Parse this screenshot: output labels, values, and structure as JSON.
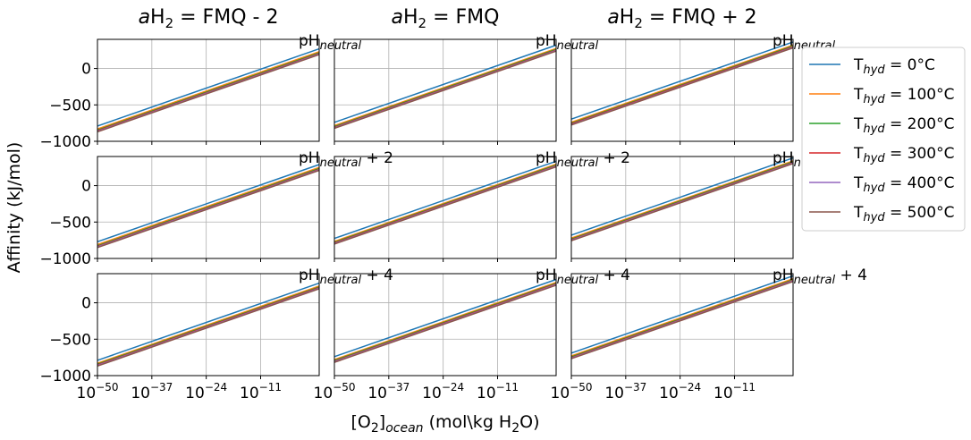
{
  "figure": {
    "ylabel": "Affinity (kJ/mol)",
    "xlabel": {
      "main": "[O",
      "sub1": "2",
      "mid": "]",
      "sub2": "ocean",
      "tail": " (mol\\kg H",
      "sub3": "2",
      "end": "O)"
    }
  },
  "columns": [
    {
      "pre": "a",
      "mid": "H",
      "sub": "2",
      "post": " = FMQ - 2"
    },
    {
      "pre": "a",
      "mid": "H",
      "sub": "2",
      "post": " = FMQ"
    },
    {
      "pre": "a",
      "mid": "H",
      "sub": "2",
      "post": " = FMQ + 2"
    }
  ],
  "row_labels": [
    {
      "pre": "pH",
      "sub": "neutral",
      "post": ""
    },
    {
      "pre": "pH",
      "sub": "neutral",
      "post": " + 2"
    },
    {
      "pre": "pH",
      "sub": "neutral",
      "post": " + 4"
    }
  ],
  "legend": [
    {
      "pre": "T",
      "sub": "hyd",
      "post": " = 0°C",
      "color": "#1f77b4"
    },
    {
      "pre": "T",
      "sub": "hyd",
      "post": " = 100°C",
      "color": "#ff7f0e"
    },
    {
      "pre": "T",
      "sub": "hyd",
      "post": " = 200°C",
      "color": "#2ca02c"
    },
    {
      "pre": "T",
      "sub": "hyd",
      "post": " = 300°C",
      "color": "#d62728"
    },
    {
      "pre": "T",
      "sub": "hyd",
      "post": " = 400°C",
      "color": "#9467bd"
    },
    {
      "pre": "T",
      "sub": "hyd",
      "post": " = 500°C",
      "color": "#8c564b"
    }
  ],
  "axes": {
    "x_ticks": [
      {
        "base": "10",
        "exp": "−50",
        "value": -50
      },
      {
        "base": "10",
        "exp": "−37",
        "value": -37
      },
      {
        "base": "10",
        "exp": "−24",
        "value": -24
      },
      {
        "base": "10",
        "exp": "−11",
        "value": -11
      }
    ],
    "y_ticks": [
      {
        "label": "−1000",
        "value": -1000
      },
      {
        "label": "−500",
        "value": -500
      },
      {
        "label": "0",
        "value": 0
      }
    ]
  },
  "chart_data": {
    "type": "line",
    "x_scale": "log",
    "xlim": [
      -50,
      3
    ],
    "ylim": [
      -1000,
      400
    ],
    "grid": true,
    "legend_position": "right",
    "panels": [
      {
        "row": 0,
        "col": 0,
        "series": [
          {
            "name": "T_hyd = 0°C",
            "x": [
              -50,
              3
            ],
            "y": [
              -790,
              270
            ]
          },
          {
            "name": "T_hyd = 100°C",
            "x": [
              -50,
              3
            ],
            "y": [
              -830,
              230
            ]
          },
          {
            "name": "T_hyd = 200°C",
            "x": [
              -50,
              3
            ],
            "y": [
              -845,
              215
            ]
          },
          {
            "name": "T_hyd = 300°C",
            "x": [
              -50,
              3
            ],
            "y": [
              -855,
              205
            ]
          },
          {
            "name": "T_hyd = 400°C",
            "x": [
              -50,
              3
            ],
            "y": [
              -862,
              198
            ]
          },
          {
            "name": "T_hyd = 500°C",
            "x": [
              -50,
              3
            ],
            "y": [
              -870,
              190
            ]
          }
        ]
      },
      {
        "row": 0,
        "col": 1,
        "series": [
          {
            "name": "T_hyd = 0°C",
            "x": [
              -50,
              3
            ],
            "y": [
              -740,
              320
            ]
          },
          {
            "name": "T_hyd = 100°C",
            "x": [
              -50,
              3
            ],
            "y": [
              -785,
              275
            ]
          },
          {
            "name": "T_hyd = 200°C",
            "x": [
              -50,
              3
            ],
            "y": [
              -798,
              262
            ]
          },
          {
            "name": "T_hyd = 300°C",
            "x": [
              -50,
              3
            ],
            "y": [
              -808,
              252
            ]
          },
          {
            "name": "T_hyd = 400°C",
            "x": [
              -50,
              3
            ],
            "y": [
              -815,
              245
            ]
          },
          {
            "name": "T_hyd = 500°C",
            "x": [
              -50,
              3
            ],
            "y": [
              -822,
              238
            ]
          }
        ]
      },
      {
        "row": 0,
        "col": 2,
        "series": [
          {
            "name": "T_hyd = 0°C",
            "x": [
              -50,
              3
            ],
            "y": [
              -695,
              365
            ]
          },
          {
            "name": "T_hyd = 100°C",
            "x": [
              -50,
              3
            ],
            "y": [
              -738,
              322
            ]
          },
          {
            "name": "T_hyd = 200°C",
            "x": [
              -50,
              3
            ],
            "y": [
              -752,
              308
            ]
          },
          {
            "name": "T_hyd = 300°C",
            "x": [
              -50,
              3
            ],
            "y": [
              -762,
              298
            ]
          },
          {
            "name": "T_hyd = 400°C",
            "x": [
              -50,
              3
            ],
            "y": [
              -770,
              290
            ]
          },
          {
            "name": "T_hyd = 500°C",
            "x": [
              -50,
              3
            ],
            "y": [
              -777,
              283
            ]
          }
        ]
      },
      {
        "row": 1,
        "col": 0,
        "series": [
          {
            "name": "T_hyd = 0°C",
            "x": [
              -50,
              3
            ],
            "y": [
              -770,
              290
            ]
          },
          {
            "name": "T_hyd = 100°C",
            "x": [
              -50,
              3
            ],
            "y": [
              -810,
              250
            ]
          },
          {
            "name": "T_hyd = 200°C",
            "x": [
              -50,
              3
            ],
            "y": [
              -825,
              235
            ]
          },
          {
            "name": "T_hyd = 300°C",
            "x": [
              -50,
              3
            ],
            "y": [
              -835,
              225
            ]
          },
          {
            "name": "T_hyd = 400°C",
            "x": [
              -50,
              3
            ],
            "y": [
              -842,
              218
            ]
          },
          {
            "name": "T_hyd = 500°C",
            "x": [
              -50,
              3
            ],
            "y": [
              -850,
              210
            ]
          }
        ]
      },
      {
        "row": 1,
        "col": 1,
        "series": [
          {
            "name": "T_hyd = 0°C",
            "x": [
              -50,
              3
            ],
            "y": [
              -725,
              335
            ]
          },
          {
            "name": "T_hyd = 100°C",
            "x": [
              -50,
              3
            ],
            "y": [
              -765,
              295
            ]
          },
          {
            "name": "T_hyd = 200°C",
            "x": [
              -50,
              3
            ],
            "y": [
              -778,
              282
            ]
          },
          {
            "name": "T_hyd = 300°C",
            "x": [
              -50,
              3
            ],
            "y": [
              -788,
              272
            ]
          },
          {
            "name": "T_hyd = 400°C",
            "x": [
              -50,
              3
            ],
            "y": [
              -795,
              265
            ]
          },
          {
            "name": "T_hyd = 500°C",
            "x": [
              -50,
              3
            ],
            "y": [
              -802,
              258
            ]
          }
        ]
      },
      {
        "row": 1,
        "col": 2,
        "series": [
          {
            "name": "T_hyd = 0°C",
            "x": [
              -50,
              3
            ],
            "y": [
              -680,
              380
            ]
          },
          {
            "name": "T_hyd = 100°C",
            "x": [
              -50,
              3
            ],
            "y": [
              -720,
              340
            ]
          },
          {
            "name": "T_hyd = 200°C",
            "x": [
              -50,
              3
            ],
            "y": [
              -733,
              327
            ]
          },
          {
            "name": "T_hyd = 300°C",
            "x": [
              -50,
              3
            ],
            "y": [
              -743,
              317
            ]
          },
          {
            "name": "T_hyd = 400°C",
            "x": [
              -50,
              3
            ],
            "y": [
              -750,
              310
            ]
          },
          {
            "name": "T_hyd = 500°C",
            "x": [
              -50,
              3
            ],
            "y": [
              -757,
              303
            ]
          }
        ]
      },
      {
        "row": 2,
        "col": 0,
        "series": [
          {
            "name": "T_hyd = 0°C",
            "x": [
              -50,
              3
            ],
            "y": [
              -790,
              270
            ]
          },
          {
            "name": "T_hyd = 100°C",
            "x": [
              -50,
              3
            ],
            "y": [
              -830,
              230
            ]
          },
          {
            "name": "T_hyd = 200°C",
            "x": [
              -50,
              3
            ],
            "y": [
              -843,
              217
            ]
          },
          {
            "name": "T_hyd = 300°C",
            "x": [
              -50,
              3
            ],
            "y": [
              -853,
              207
            ]
          },
          {
            "name": "T_hyd = 400°C",
            "x": [
              -50,
              3
            ],
            "y": [
              -860,
              200
            ]
          },
          {
            "name": "T_hyd = 500°C",
            "x": [
              -50,
              3
            ],
            "y": [
              -868,
              192
            ]
          }
        ]
      },
      {
        "row": 2,
        "col": 1,
        "series": [
          {
            "name": "T_hyd = 0°C",
            "x": [
              -50,
              3
            ],
            "y": [
              -740,
              320
            ]
          },
          {
            "name": "T_hyd = 100°C",
            "x": [
              -50,
              3
            ],
            "y": [
              -780,
              280
            ]
          },
          {
            "name": "T_hyd = 200°C",
            "x": [
              -50,
              3
            ],
            "y": [
              -793,
              267
            ]
          },
          {
            "name": "T_hyd = 300°C",
            "x": [
              -50,
              3
            ],
            "y": [
              -803,
              257
            ]
          },
          {
            "name": "T_hyd = 400°C",
            "x": [
              -50,
              3
            ],
            "y": [
              -810,
              250
            ]
          },
          {
            "name": "T_hyd = 500°C",
            "x": [
              -50,
              3
            ],
            "y": [
              -818,
              242
            ]
          }
        ]
      },
      {
        "row": 2,
        "col": 2,
        "series": [
          {
            "name": "T_hyd = 0°C",
            "x": [
              -50,
              3
            ],
            "y": [
              -690,
              370
            ]
          },
          {
            "name": "T_hyd = 100°C",
            "x": [
              -50,
              3
            ],
            "y": [
              -730,
              330
            ]
          },
          {
            "name": "T_hyd = 200°C",
            "x": [
              -50,
              3
            ],
            "y": [
              -743,
              317
            ]
          },
          {
            "name": "T_hyd = 300°C",
            "x": [
              -50,
              3
            ],
            "y": [
              -753,
              307
            ]
          },
          {
            "name": "T_hyd = 400°C",
            "x": [
              -50,
              3
            ],
            "y": [
              -760,
              300
            ]
          },
          {
            "name": "T_hyd = 500°C",
            "x": [
              -50,
              3
            ],
            "y": [
              -768,
              292
            ]
          }
        ]
      }
    ]
  }
}
